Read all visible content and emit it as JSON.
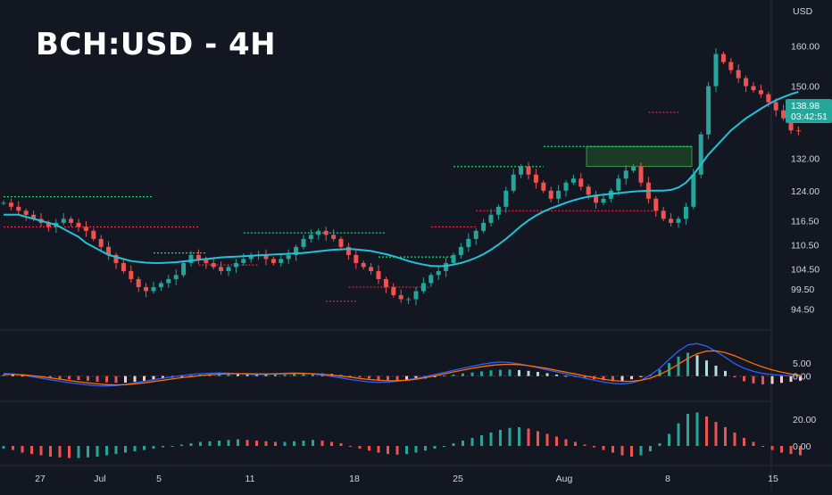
{
  "header": {
    "title": "BCH:USD - 4H"
  },
  "colors": {
    "background": "#131722",
    "up": "#26a69a",
    "down": "#ef5350",
    "ma": "#22c2d8",
    "macd_line": "#2962ff",
    "signal_line": "#ff6d00",
    "support": "#00e676",
    "resistance": "#ff1744",
    "price_tag": "#26a69a",
    "zone": "#2e7d32"
  },
  "chart_data": [
    {
      "type": "line",
      "name": "price",
      "unit_label": "USD",
      "y_ticks": [
        "160.00",
        "150.00",
        "132.00",
        "124.00",
        "116.50",
        "110.50",
        "104.50",
        "99.50",
        "94.50"
      ],
      "ylim": [
        92,
        167
      ],
      "x_ticks": [
        "27",
        "Jul",
        "5",
        "11",
        "18",
        "25",
        "Aug",
        "8",
        "15"
      ],
      "last_price": "138.98",
      "countdown": "03:42:51",
      "close_series": [
        121,
        120,
        119,
        118,
        117,
        116,
        115,
        116,
        117,
        116,
        115,
        114,
        112,
        110,
        108,
        106,
        104,
        102,
        100,
        99,
        100,
        101,
        102,
        103,
        106,
        108,
        107,
        106,
        105,
        104,
        105,
        106,
        107,
        108,
        108,
        107,
        106,
        107,
        108,
        110,
        112,
        113,
        114,
        113,
        112,
        110,
        108,
        106,
        105,
        104,
        102,
        100,
        98,
        97,
        97,
        99,
        101,
        103,
        104,
        106,
        108,
        110,
        112,
        114,
        116,
        118,
        120,
        124,
        128,
        130,
        128,
        126,
        124,
        122,
        124,
        126,
        127,
        125,
        123,
        121,
        122,
        124,
        127,
        129,
        130,
        126,
        122,
        119,
        117,
        116,
        117,
        120,
        128,
        138,
        150,
        158,
        156,
        154,
        152,
        150,
        149,
        148,
        146,
        144,
        142,
        139,
        138.98
      ],
      "ma_series": [
        118,
        118,
        118,
        117.5,
        117,
        116.5,
        116,
        115.5,
        114.5,
        113.5,
        112.5,
        111,
        110,
        109,
        108,
        107.5,
        107,
        106.5,
        106.3,
        106.1,
        106,
        106,
        106.1,
        106.2,
        106.4,
        106.6,
        106.8,
        107,
        107.2,
        107.4,
        107.5,
        107.6,
        107.7,
        107.8,
        107.9,
        108,
        108.1,
        108.2,
        108.3,
        108.4,
        108.5,
        108.7,
        108.9,
        109.1,
        109.3,
        109.4,
        109.5,
        109.4,
        109.2,
        109,
        108.6,
        108.2,
        107.7,
        107.1,
        106.5,
        106,
        105.6,
        105.3,
        105.2,
        105.3,
        105.6,
        106,
        106.6,
        107.3,
        108.2,
        109.3,
        110.6,
        112,
        113.6,
        115.2,
        116.6,
        117.8,
        118.8,
        119.6,
        120.3,
        121,
        121.6,
        122.1,
        122.5,
        122.8,
        123,
        123.2,
        123.4,
        123.6,
        123.8,
        123.9,
        124,
        124,
        124,
        124.2,
        124.8,
        126,
        128,
        130.5,
        133,
        135,
        137,
        139,
        140.5,
        142,
        143.2,
        144.4,
        145.5,
        146.5,
        147.3,
        148,
        148.6
      ],
      "support_lines": [
        {
          "y": 122.5,
          "from": 0,
          "to": 20
        },
        {
          "y": 113.5,
          "from": 32,
          "to": 51
        },
        {
          "y": 108.5,
          "from": 20,
          "to": 27
        },
        {
          "y": 107.5,
          "from": 50,
          "to": 60
        },
        {
          "y": 130.0,
          "from": 60,
          "to": 72
        },
        {
          "y": 135.0,
          "from": 72,
          "to": 92
        }
      ],
      "resistance_lines": [
        {
          "y": 115.0,
          "from": 0,
          "to": 26
        },
        {
          "y": 105.5,
          "from": 26,
          "to": 34
        },
        {
          "y": 100.0,
          "from": 46,
          "to": 57
        },
        {
          "y": 96.5,
          "from": 43,
          "to": 47
        },
        {
          "y": 115.0,
          "from": 57,
          "to": 63
        },
        {
          "y": 119.0,
          "from": 63,
          "to": 87
        },
        {
          "y": 143.5,
          "from": 86,
          "to": 90
        }
      ],
      "zone": {
        "y_top": 135.0,
        "y_bottom": 130.0
      }
    },
    {
      "type": "bar",
      "name": "macd",
      "y_ticks": [
        "5.00",
        "0.00"
      ],
      "ylim": [
        -8,
        16
      ],
      "histogram": [
        0.5,
        0.4,
        0.2,
        -0.3,
        -0.6,
        -0.8,
        -1.0,
        -1.2,
        -1.5,
        -1.8,
        -2.2,
        -2.4,
        -2.6,
        -2.5,
        -2.2,
        -1.8,
        -1.4,
        -1.0,
        -0.6,
        -0.2,
        0.3,
        0.6,
        0.8,
        1.0,
        1.1,
        1.0,
        0.8,
        0.6,
        0.5,
        0.4,
        0.6,
        0.8,
        1.0,
        1.1,
        1.0,
        0.8,
        0.4,
        0.0,
        -0.5,
        -1.0,
        -1.4,
        -1.6,
        -1.7,
        -1.6,
        -1.3,
        -0.9,
        -0.4,
        0.2,
        0.6,
        1.0,
        1.4,
        1.8,
        2.2,
        2.4,
        2.5,
        2.3,
        2.0,
        1.6,
        1.1,
        0.6,
        0.1,
        -0.4,
        -0.8,
        -1.2,
        -1.6,
        -2.0,
        -1.8,
        -1.2,
        -0.4,
        0.5,
        2.5,
        5.0,
        7.5,
        9.0,
        8.0,
        6.0,
        4.0,
        2.0,
        -0.5,
        -2.0,
        -2.8,
        -3.2,
        -3.0,
        -2.6,
        -2.2,
        -1.8
      ],
      "macd_line": [
        1.0,
        0.8,
        0.4,
        -0.2,
        -0.8,
        -1.4,
        -2.0,
        -2.5,
        -3.0,
        -3.4,
        -3.7,
        -3.8,
        -3.6,
        -3.2,
        -2.6,
        -2.0,
        -1.4,
        -0.8,
        -0.3,
        0.2,
        0.6,
        0.9,
        1.1,
        1.2,
        1.1,
        0.9,
        0.7,
        0.6,
        0.7,
        0.9,
        1.1,
        1.2,
        1.1,
        0.8,
        0.4,
        -0.1,
        -0.7,
        -1.3,
        -1.8,
        -2.2,
        -2.4,
        -2.3,
        -2.0,
        -1.5,
        -0.9,
        -0.2,
        0.6,
        1.4,
        2.2,
        3.0,
        3.8,
        4.5,
        5.1,
        5.4,
        5.2,
        4.7,
        4.0,
        3.2,
        2.4,
        1.6,
        0.8,
        0.0,
        -0.8,
        -1.6,
        -2.3,
        -2.8,
        -3.0,
        -2.6,
        -1.6,
        0.4,
        3.0,
        6.4,
        9.6,
        12.0,
        12.5,
        11.5,
        9.5,
        7.2,
        4.8,
        3.0,
        1.8,
        1.0,
        0.6,
        0.3,
        0.1,
        0.0
      ],
      "signal_line": [
        0.6,
        0.6,
        0.5,
        0.2,
        -0.2,
        -0.7,
        -1.2,
        -1.7,
        -2.2,
        -2.6,
        -3.0,
        -3.3,
        -3.4,
        -3.3,
        -3.0,
        -2.6,
        -2.1,
        -1.6,
        -1.1,
        -0.6,
        -0.2,
        0.2,
        0.5,
        0.7,
        0.9,
        0.9,
        0.9,
        0.8,
        0.8,
        0.8,
        0.9,
        1.0,
        1.0,
        0.9,
        0.7,
        0.4,
        0.0,
        -0.4,
        -0.9,
        -1.3,
        -1.6,
        -1.8,
        -1.8,
        -1.6,
        -1.2,
        -0.6,
        0.1,
        0.8,
        1.6,
        2.3,
        3.0,
        3.6,
        4.1,
        4.4,
        4.5,
        4.4,
        4.0,
        3.5,
        2.9,
        2.2,
        1.5,
        0.8,
        0.1,
        -0.6,
        -1.2,
        -1.7,
        -2.0,
        -2.0,
        -1.6,
        -0.8,
        0.6,
        2.4,
        4.6,
        6.8,
        8.6,
        9.6,
        9.7,
        9.0,
        7.8,
        6.3,
        4.8,
        3.5,
        2.4,
        1.5,
        0.8,
        0.3
      ]
    },
    {
      "type": "bar",
      "name": "oscillator",
      "y_ticks": [
        "20.00",
        "0.00"
      ],
      "ylim": [
        -12,
        30
      ],
      "values": [
        -2,
        -3,
        -5,
        -6,
        -7,
        -8,
        -8.5,
        -9,
        -9,
        -8.5,
        -8,
        -7,
        -6,
        -5,
        -4,
        -3,
        -2,
        -1,
        0,
        1,
        2,
        3,
        3.5,
        4,
        4.5,
        5,
        4.5,
        4,
        3.5,
        3,
        3,
        3.5,
        4,
        4.5,
        4,
        3,
        2,
        0,
        -2,
        -3.5,
        -5,
        -6,
        -6.5,
        -6,
        -5,
        -3.5,
        -2,
        0,
        2,
        4,
        6,
        8,
        10,
        12,
        13.5,
        14,
        13,
        11,
        9,
        7,
        5,
        3,
        1,
        -1,
        -3,
        -5,
        -7,
        -8,
        -7,
        -4,
        2,
        9,
        17,
        24,
        25,
        22,
        18,
        14,
        10,
        6,
        3,
        0,
        -3,
        -5,
        -6,
        -7
      ]
    }
  ]
}
